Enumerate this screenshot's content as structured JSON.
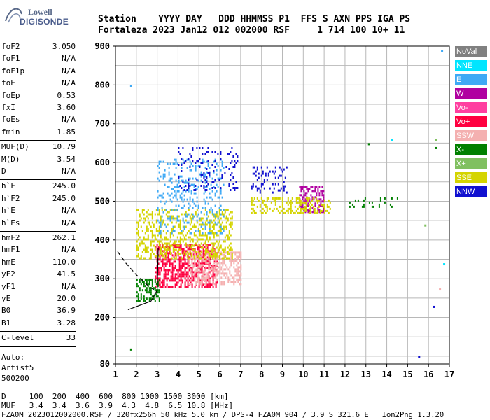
{
  "logo": {
    "line1": "Lowell",
    "line2": "DIGISONDE"
  },
  "header": {
    "row1": "Station    YYYY DAY   DDD HHMMSS P1  FFS S AXN PPS IGA PS",
    "row2": "Fortaleza 2023 Jan12 012 002000 RSF     1 714 100 10+ 11"
  },
  "params": {
    "group1": [
      {
        "name": "foF2",
        "value": "3.050"
      },
      {
        "name": "foF1",
        "value": "N/A"
      },
      {
        "name": "foF1p",
        "value": "N/A"
      },
      {
        "name": "foE",
        "value": "N/A"
      },
      {
        "name": "foEp",
        "value": "0.53"
      },
      {
        "name": "fxI",
        "value": "3.60"
      },
      {
        "name": "foEs",
        "value": "N/A"
      },
      {
        "name": "fmin",
        "value": "1.85"
      }
    ],
    "group2": [
      {
        "name": "MUF(D)",
        "value": "10.79"
      },
      {
        "name": "M(D)",
        "value": "3.54"
      },
      {
        "name": "D",
        "value": "N/A"
      }
    ],
    "group3": [
      {
        "name": "h`F",
        "value": "245.0"
      },
      {
        "name": "h`F2",
        "value": "245.0"
      },
      {
        "name": "h`E",
        "value": "N/A"
      },
      {
        "name": "h`Es",
        "value": "N/A"
      }
    ],
    "group4": [
      {
        "name": "hmF2",
        "value": "262.1"
      },
      {
        "name": "hmF1",
        "value": "N/A"
      },
      {
        "name": "hmE",
        "value": "110.0"
      },
      {
        "name": "yF2",
        "value": "41.5"
      },
      {
        "name": "yF1",
        "value": "N/A"
      },
      {
        "name": "yE",
        "value": "20.0"
      },
      {
        "name": "B0",
        "value": "36.9"
      },
      {
        "name": "B1",
        "value": "3.28"
      }
    ],
    "group5": [
      {
        "name": "C-level",
        "value": "33"
      }
    ],
    "auto": [
      "Auto:",
      "Artist5",
      "500200"
    ]
  },
  "legend": [
    {
      "label": "NoVal",
      "color": "#808080"
    },
    {
      "label": "NNE",
      "color": "#00e5ff"
    },
    {
      "label": "E",
      "color": "#3fa9f5"
    },
    {
      "label": "W",
      "color": "#b000a0"
    },
    {
      "label": "Vo-",
      "color": "#ff3fa0"
    },
    {
      "label": "Vo+",
      "color": "#ff0040"
    },
    {
      "label": "SSW",
      "color": "#f4b0b0"
    },
    {
      "label": "X-",
      "color": "#008000"
    },
    {
      "label": "X+",
      "color": "#80c060"
    },
    {
      "label": "SSE",
      "color": "#d4d400"
    },
    {
      "label": "NNW",
      "color": "#1010d0"
    }
  ],
  "footer": {
    "row1": "D     100  200  400  600  800 1000 1500 3000 [km]",
    "row2": "MUF   3.4  3.4  3.6  3.9  4.3  4.8  6.5 10.8 [MHz]",
    "row3": "FZA0M_2023012002000.RSF / 320fx256h 50 kHz 5.0 km / DPS-4 FZA0M 904 / 3.9 S 321.6 E   Ion2Png 1.3.20"
  },
  "chart_data": {
    "type": "scatter",
    "xlim": [
      1,
      17
    ],
    "ylim": [
      80,
      900
    ],
    "xticks": [
      "1",
      "2",
      "3",
      "4",
      "5",
      "6",
      "7",
      "8",
      "9",
      "10",
      "11",
      "12",
      "13",
      "14",
      "15",
      "16",
      "17"
    ],
    "yticks": [
      "80",
      "200",
      "300",
      "400",
      "500",
      "600",
      "700",
      "800",
      "900"
    ],
    "grid": true,
    "clusters": [
      {
        "series": "Vo+",
        "x": [
          2.9,
          5.9
        ],
        "y": [
          280,
          390
        ],
        "density": 0.55
      },
      {
        "series": "SSW",
        "x": [
          4.5,
          7.0
        ],
        "y": [
          285,
          370
        ],
        "density": 0.45
      },
      {
        "series": "X-",
        "x": [
          2.0,
          3.1
        ],
        "y": [
          245,
          300
        ],
        "density": 0.45
      },
      {
        "series": "SSE",
        "x": [
          2.0,
          6.6
        ],
        "y": [
          355,
          480
        ],
        "density": 0.35
      },
      {
        "series": "E",
        "x": [
          3.0,
          6.2
        ],
        "y": [
          420,
          610
        ],
        "density": 0.18
      },
      {
        "series": "NNW",
        "x": [
          4.0,
          6.9
        ],
        "y": [
          530,
          640
        ],
        "density": 0.12
      },
      {
        "series": "W",
        "x": [
          9.8,
          11.0
        ],
        "y": [
          470,
          540
        ],
        "density": 0.45
      },
      {
        "series": "SSE",
        "x": [
          7.5,
          11.3
        ],
        "y": [
          470,
          510
        ],
        "density": 0.35
      },
      {
        "series": "NNW",
        "x": [
          7.5,
          9.2
        ],
        "y": [
          520,
          590
        ],
        "density": 0.2
      },
      {
        "series": "X-",
        "x": [
          12.0,
          14.5
        ],
        "y": [
          485,
          510
        ],
        "density": 0.15
      }
    ],
    "traces": [
      {
        "name": "lower-solid",
        "x": [
          1.6,
          2.2,
          2.7,
          3.0,
          3.05
        ],
        "y": [
          220,
          232,
          242,
          270,
          380
        ]
      },
      {
        "name": "upper-dashed",
        "x": [
          1.1,
          1.5,
          2.0,
          2.5,
          3.0
        ],
        "y": [
          370,
          340,
          310,
          285,
          265
        ]
      }
    ]
  }
}
